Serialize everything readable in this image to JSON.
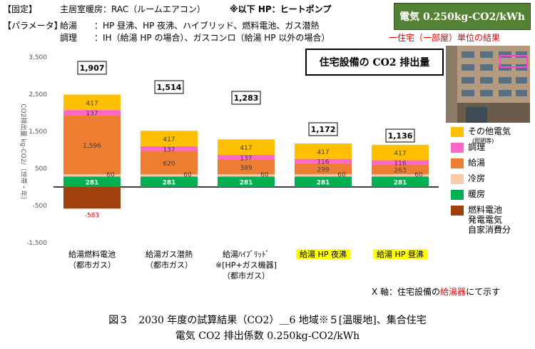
{
  "header": {
    "fixed_label": "【固定】",
    "fixed_text": "主居室暖房：RAC（ルームエアコン）",
    "note": "※以下 HP：ヒートポンプ",
    "param_label": "【パラメータ】",
    "row1_key": "給湯",
    "row1_val": "：HP 昼沸、HP 夜沸、ハイブリッド、燃料電池、ガス潜熱",
    "row2_key": "調理",
    "row2_val": "：IH（給湯 HP の場合）、ガスコンロ（給湯 HP 以外の場合）"
  },
  "electricity_box": "電気 0.250kg-CO2/kWh",
  "unit_label": "一住宅（一部屋）単位の結果",
  "x_note": {
    "prefix": "X 軸：住宅設備の",
    "highlight": "給湯器",
    "suffix": "にて示す"
  },
  "caption": {
    "line1": "図３　2030 年度の試算結果（CO2）＿6 地域※５[温暖地]、集合住宅",
    "line2": "電気 CO2 排出係数 0.250kg-CO2/kWh"
  },
  "colors": {
    "other": "#ffc000",
    "cooking": "#ff66cc",
    "hotwater": "#ed7d31",
    "cooling": "#f8cbad",
    "heating": "#00b050",
    "fuelcell": "#a0410d",
    "highlight_label": "#ffff00",
    "elec_box": "#548235"
  },
  "chart_data": {
    "type": "bar",
    "stacked": true,
    "title": "住宅設備の CO2 排出量",
    "ylabel": "CO2排出量 kg-CO2/（世帯・年）",
    "ylim": [
      -1500,
      3500
    ],
    "yticks": [
      3500,
      2500,
      1500,
      500,
      -500,
      -1500
    ],
    "categories": [
      {
        "lines": [
          "給湯燃料電池",
          "（都市ガス）"
        ],
        "highlight": false
      },
      {
        "lines": [
          "給湯ガス潜熱",
          "（都市ガス）"
        ],
        "highlight": false
      },
      {
        "lines": [
          "給湯ﾊｲﾌﾞﾘｯﾄﾞ",
          "※[HP+ガス機器]",
          "（都市ガス）"
        ],
        "highlight": false
      },
      {
        "lines": [
          "給湯 HP 夜沸"
        ],
        "highlight": true
      },
      {
        "lines": [
          "給湯 HP 昼沸"
        ],
        "highlight": true
      }
    ],
    "totals": [
      1907,
      1514,
      1283,
      1172,
      1136
    ],
    "series": [
      {
        "name": "暖房",
        "key": "heating",
        "values": [
          281,
          281,
          281,
          281,
          281
        ],
        "labels": [
          "281",
          "281",
          "281",
          "281",
          "281"
        ]
      },
      {
        "name": "冷房",
        "key": "cooling",
        "values": [
          60,
          60,
          60,
          60,
          60
        ],
        "labels": [
          "60",
          "60",
          "60",
          "60",
          "60"
        ]
      },
      {
        "name": "給湯",
        "key": "hotwater",
        "values": [
          1596,
          620,
          389,
          299,
          263
        ],
        "labels": [
          "1,596",
          "620",
          "389",
          "299",
          "263"
        ]
      },
      {
        "name": "調理",
        "key": "cooking",
        "values": [
          137,
          137,
          137,
          116,
          116
        ],
        "labels": [
          "137",
          "137",
          "137",
          "116",
          "116"
        ]
      },
      {
        "name": "その他電気",
        "key": "other",
        "values": [
          417,
          417,
          417,
          417,
          417
        ],
        "labels": [
          "417",
          "417",
          "417",
          "417",
          "417"
        ]
      },
      {
        "name": "燃料電池発電電気自家消費分",
        "key": "fuelcell",
        "values": [
          -583,
          0,
          0,
          0,
          0
        ],
        "labels": [
          "-583",
          "",
          "",
          "",
          ""
        ]
      }
    ],
    "legend": [
      {
        "key": "other",
        "label": "その他電気",
        "sub": "(照明等)"
      },
      {
        "key": "cooking",
        "label": "調理"
      },
      {
        "key": "hotwater",
        "label": "給湯"
      },
      {
        "key": "cooling",
        "label": "冷房"
      },
      {
        "key": "heating",
        "label": "暖房"
      },
      {
        "key": "fuelcell",
        "label": "燃料電池",
        "extra": [
          "発電電気",
          "自家消費分"
        ]
      }
    ],
    "legend_position": "right"
  }
}
